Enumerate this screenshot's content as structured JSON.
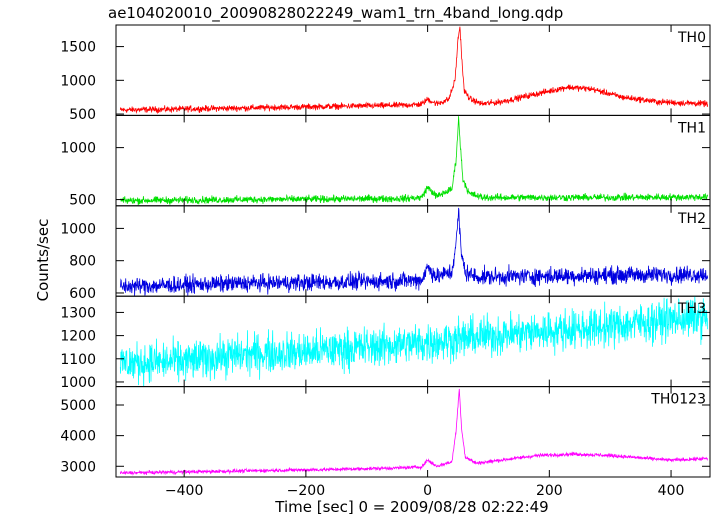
{
  "chart_data": {
    "type": "line",
    "title": "ae104020010_20090828022249_wam1_trn_4band_long.qdp",
    "xlabel": "Time [sec] 0 = 2009/08/28 02:22:49",
    "ylabel": "Counts/sec",
    "xlim": [
      -512,
      464
    ],
    "x_ticks": [
      -400,
      -200,
      0,
      200,
      400
    ],
    "grid": false,
    "panels": [
      {
        "name": "TH0",
        "color": "#ff0000",
        "ylim": [
          480,
          1820
        ],
        "y_ticks": [
          500,
          1000,
          1500
        ],
        "noise": 22,
        "profile": [
          [
            -505,
            560
          ],
          [
            -300,
            590
          ],
          [
            -150,
            615
          ],
          [
            -40,
            630
          ],
          [
            -10,
            645
          ],
          [
            0,
            720
          ],
          [
            15,
            650
          ],
          [
            35,
            720
          ],
          [
            45,
            1000
          ],
          [
            50,
            1600
          ],
          [
            53,
            1800
          ],
          [
            56,
            1350
          ],
          [
            60,
            850
          ],
          [
            70,
            720
          ],
          [
            90,
            650
          ],
          [
            120,
            680
          ],
          [
            180,
            800
          ],
          [
            230,
            900
          ],
          [
            270,
            870
          ],
          [
            320,
            750
          ],
          [
            380,
            680
          ],
          [
            460,
            650
          ]
        ]
      },
      {
        "name": "TH1",
        "color": "#00e000",
        "ylim": [
          440,
          1310
        ],
        "y_ticks": [
          500,
          1000
        ],
        "noise": 17,
        "profile": [
          [
            -505,
            490
          ],
          [
            -300,
            500
          ],
          [
            -40,
            510
          ],
          [
            -10,
            520
          ],
          [
            0,
            620
          ],
          [
            15,
            530
          ],
          [
            40,
            600
          ],
          [
            47,
            900
          ],
          [
            51,
            1280
          ],
          [
            54,
            1000
          ],
          [
            58,
            700
          ],
          [
            68,
            560
          ],
          [
            90,
            520
          ],
          [
            200,
            520
          ],
          [
            300,
            520
          ],
          [
            460,
            525
          ]
        ]
      },
      {
        "name": "TH2",
        "color": "#0000e0",
        "ylim": [
          580,
          1140
        ],
        "y_ticks": [
          600,
          800,
          1000
        ],
        "noise": 26,
        "profile": [
          [
            -505,
            640
          ],
          [
            -300,
            660
          ],
          [
            -100,
            670
          ],
          [
            -10,
            680
          ],
          [
            0,
            760
          ],
          [
            15,
            700
          ],
          [
            40,
            730
          ],
          [
            48,
            950
          ],
          [
            51,
            1110
          ],
          [
            55,
            850
          ],
          [
            62,
            730
          ],
          [
            80,
            700
          ],
          [
            200,
            705
          ],
          [
            300,
            710
          ],
          [
            460,
            715
          ]
        ]
      },
      {
        "name": "TH3",
        "color": "#00ffff",
        "ylim": [
          980,
          1370
        ],
        "y_ticks": [
          1000,
          1100,
          1200,
          1300
        ],
        "noise": 42,
        "profile": [
          [
            -505,
            1080
          ],
          [
            -400,
            1090
          ],
          [
            -300,
            1120
          ],
          [
            -200,
            1130
          ],
          [
            -100,
            1150
          ],
          [
            0,
            1170
          ],
          [
            100,
            1200
          ],
          [
            200,
            1220
          ],
          [
            300,
            1240
          ],
          [
            400,
            1270
          ],
          [
            460,
            1280
          ]
        ]
      },
      {
        "name": "TH0123",
        "color": "#ff00ff",
        "ylim": [
          2650,
          5600
        ],
        "y_ticks": [
          3000,
          4000,
          5000
        ],
        "noise": 28,
        "profile": [
          [
            -505,
            2780
          ],
          [
            -300,
            2850
          ],
          [
            -150,
            2900
          ],
          [
            -40,
            2950
          ],
          [
            -10,
            2980
          ],
          [
            0,
            3200
          ],
          [
            15,
            3000
          ],
          [
            40,
            3150
          ],
          [
            47,
            4200
          ],
          [
            52,
            5500
          ],
          [
            56,
            4200
          ],
          [
            62,
            3300
          ],
          [
            80,
            3100
          ],
          [
            180,
            3350
          ],
          [
            240,
            3400
          ],
          [
            300,
            3350
          ],
          [
            400,
            3200
          ],
          [
            460,
            3250
          ]
        ]
      }
    ]
  }
}
